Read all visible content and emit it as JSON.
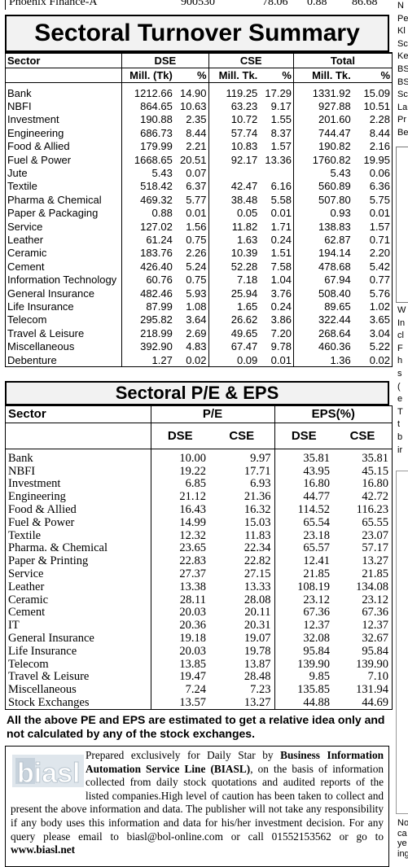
{
  "top_row": {
    "name": "Phoenix Finance-A",
    "v1": "900530",
    "v2": "78.06",
    "v3": "0.88",
    "v4": "86.68"
  },
  "turnover": {
    "title": "Sectoral Turnover Summary",
    "headers": {
      "sector": "Sector",
      "dse": "DSE",
      "cse": "CSE",
      "total": "Total",
      "mill_tk1": "Mill. (Tk)",
      "pct": "%",
      "mill_tk2": "Mill. Tk.",
      "mill_tk3": "Mill. Tk."
    },
    "rows": [
      [
        "Bank",
        "1212.66",
        "14.90",
        "119.25",
        "17.29",
        "1331.92",
        "15.09"
      ],
      [
        "NBFI",
        "864.65",
        "10.63",
        "63.23",
        "9.17",
        "927.88",
        "10.51"
      ],
      [
        "Investment",
        "190.88",
        "2.35",
        "10.72",
        "1.55",
        "201.60",
        "2.28"
      ],
      [
        "Engineering",
        "686.73",
        "8.44",
        "57.74",
        "8.37",
        "744.47",
        "8.44"
      ],
      [
        "Food & Allied",
        "179.99",
        "2.21",
        "10.83",
        "1.57",
        "190.82",
        "2.16"
      ],
      [
        "Fuel & Power",
        "1668.65",
        "20.51",
        "92.17",
        "13.36",
        "1760.82",
        "19.95"
      ],
      [
        "Jute",
        "5.43",
        "0.07",
        "",
        "",
        "5.43",
        "0.06"
      ],
      [
        "Textile",
        "518.42",
        "6.37",
        "42.47",
        "6.16",
        "560.89",
        "6.36"
      ],
      [
        "Pharma & Chemical",
        "469.32",
        "5.77",
        "38.48",
        "5.58",
        "507.80",
        "5.75"
      ],
      [
        "Paper & Packaging",
        "0.88",
        "0.01",
        "0.05",
        "0.01",
        "0.93",
        "0.01"
      ],
      [
        "Service",
        "127.02",
        "1.56",
        "11.82",
        "1.71",
        "138.83",
        "1.57"
      ],
      [
        "Leather",
        "61.24",
        "0.75",
        "1.63",
        "0.24",
        "62.87",
        "0.71"
      ],
      [
        "Ceramic",
        "183.76",
        "2.26",
        "10.39",
        "1.51",
        "194.14",
        "2.20"
      ],
      [
        "Cement",
        "426.40",
        "5.24",
        "52.28",
        "7.58",
        "478.68",
        "5.42"
      ],
      [
        "Information Technology",
        "60.76",
        "0.75",
        "7.18",
        "1.04",
        "67.94",
        "0.77"
      ],
      [
        "General Insurance",
        "482.46",
        "5.93",
        "25.94",
        "3.76",
        "508.40",
        "5.76"
      ],
      [
        "Life Insurance",
        "87.99",
        "1.08",
        "1.65",
        "0.24",
        "89.65",
        "1.02"
      ],
      [
        "Telecom",
        "295.82",
        "3.64",
        "26.62",
        "3.86",
        "322.44",
        "3.65"
      ],
      [
        "Travel & Leisure",
        "218.99",
        "2.69",
        "49.65",
        "7.20",
        "268.64",
        "3.04"
      ],
      [
        "Miscellaneous",
        "392.90",
        "4.83",
        "67.47",
        "9.78",
        "460.36",
        "5.22"
      ],
      [
        "Debenture",
        "1.27",
        "0.02",
        "0.09",
        "0.01",
        "1.36",
        "0.02"
      ]
    ]
  },
  "pe_eps": {
    "title": "Sectoral P/E & EPS",
    "headers": {
      "sector": "Sector",
      "pe": "P/E",
      "eps": "EPS(%)",
      "dse": "DSE",
      "cse": "CSE"
    },
    "rows": [
      [
        "Bank",
        "10.00",
        "9.97",
        "35.81",
        "35.81"
      ],
      [
        "NBFI",
        "19.22",
        "17.71",
        "43.95",
        "45.15"
      ],
      [
        "Investment",
        "6.85",
        "6.93",
        "16.80",
        "16.80"
      ],
      [
        "Engineering",
        "21.12",
        "21.36",
        "44.77",
        "42.72"
      ],
      [
        "Food & Allied",
        "16.43",
        "16.32",
        "114.52",
        "116.23"
      ],
      [
        "Fuel & Power",
        "14.99",
        "15.03",
        "65.54",
        "65.55"
      ],
      [
        "Textile",
        "12.32",
        "11.83",
        "23.18",
        "23.07"
      ],
      [
        "Pharma. & Chemical",
        "23.65",
        "22.34",
        "65.57",
        "57.17"
      ],
      [
        "Paper & Printing",
        "22.83",
        "22.82",
        "12.41",
        "13.27"
      ],
      [
        "Service",
        "27.37",
        "27.15",
        "21.85",
        "21.85"
      ],
      [
        "Leather",
        "13.38",
        "13.33",
        "108.19",
        "134.08"
      ],
      [
        "Ceramic",
        "28.11",
        "28.08",
        "23.12",
        "23.12"
      ],
      [
        "Cement",
        "20.03",
        "20.11",
        "67.36",
        "67.36"
      ],
      [
        "IT",
        "20.36",
        "20.31",
        "12.37",
        "12.37"
      ],
      [
        "General Insurance",
        "19.18",
        "19.07",
        "32.08",
        "32.67"
      ],
      [
        "Life Insurance",
        "20.03",
        "19.78",
        "95.84",
        "95.84"
      ],
      [
        "Telecom",
        "13.85",
        "13.87",
        "139.90",
        "139.90"
      ],
      [
        "Travel & Leisure",
        "19.47",
        "28.48",
        "9.85",
        "7.10"
      ],
      [
        "Miscellaneous",
        "7.24",
        "7.23",
        "135.85",
        "131.94"
      ],
      [
        "Stock Exchanges",
        "13.57",
        "13.27",
        "44.88",
        "44.69"
      ]
    ]
  },
  "note": "All the above PE and EPS are estimated to get a relative idea only and not calculated by any of the stock exchanges.",
  "biasl": {
    "logo_text": "biasl",
    "p1": "Prepared exclusively for Daily Star by ",
    "bold1": "Business Information Automation Service Line (BIASL)",
    "p2": ", on the basis of information collected from daily stock quotations and audited reports of the listed companies.High level of caution has been taken to collect and present the above information and data. The publisher will not take any responsibility if any body uses this information and data for his/her investment decision. For any query please email to biasl@bol-online.com or call 01552153562 or go to ",
    "bold2": "www.biasl.net"
  },
  "right_edge": [
    "N",
    "Pe",
    "Kl",
    "Sc",
    "Ke",
    "BS",
    "BS",
    "Sc",
    "La",
    "Pr",
    "Be"
  ],
  "right_edge2": [
    "W",
    "In",
    "cl",
    "F",
    "h",
    "s",
    "(",
    "e",
    "T",
    "t",
    "b",
    "ir"
  ],
  "right_edge3": [
    "No",
    "ca",
    "ye",
    "ing"
  ]
}
